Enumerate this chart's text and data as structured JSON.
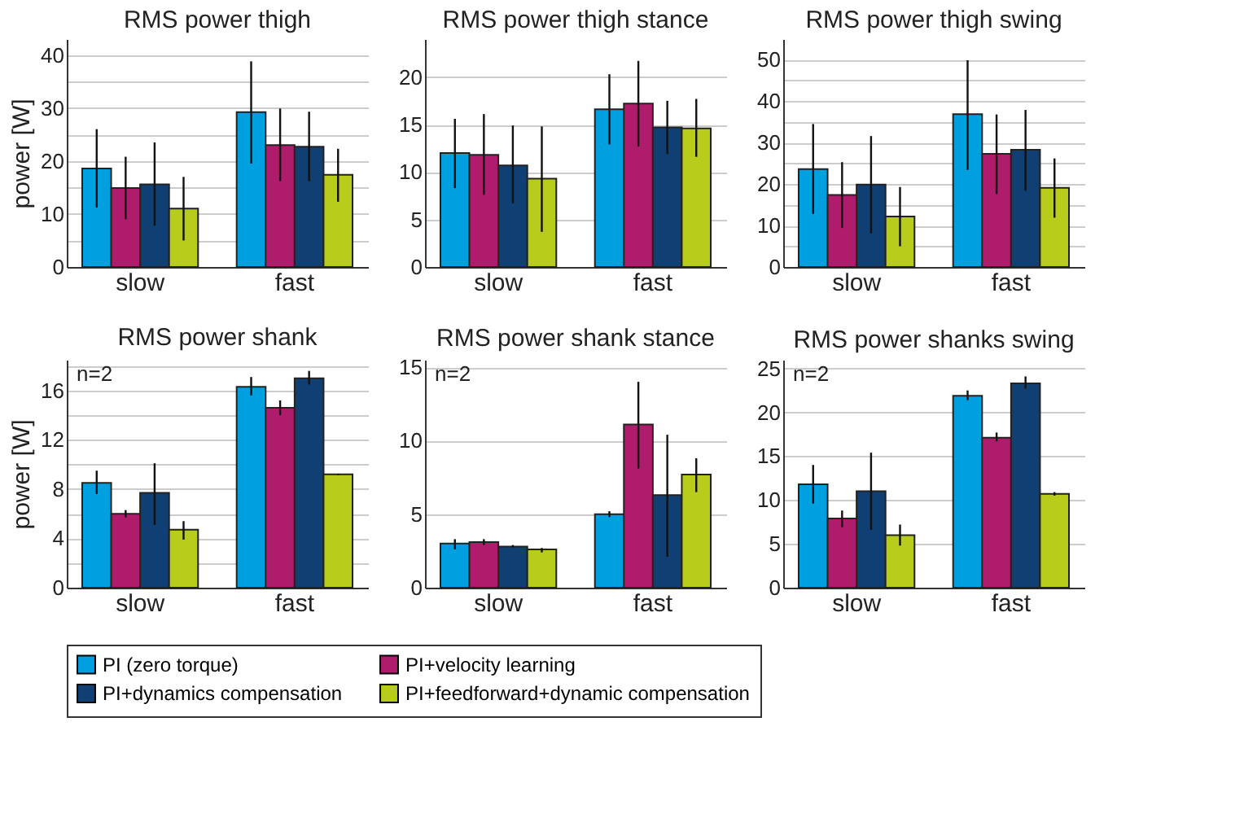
{
  "chart_data": [
    {
      "type": "bar",
      "title": "RMS power thigh",
      "ylabel": "power [W]",
      "categories": [
        "slow",
        "fast"
      ],
      "ylim": [
        0,
        43
      ],
      "yticks": [
        0,
        {
          "value": 5,
          "label": null
        },
        10,
        {
          "value": 15,
          "label": null
        },
        20,
        {
          "value": 25,
          "label": null
        },
        30,
        {
          "value": 35,
          "label": null
        },
        40
      ],
      "grid": "y",
      "legend": "bottom",
      "series": [
        {
          "name": "PI (zero torque)",
          "color": "#00a0e0",
          "values": [
            18.6,
            29.2
          ],
          "errors": [
            [
              11.2,
              26
            ],
            [
              19.5,
              38.8
            ]
          ]
        },
        {
          "name": "PI+velocity learning",
          "color": "#b01c6c",
          "values": [
            14.9,
            23
          ],
          "errors": [
            [
              9,
              20.8
            ],
            [
              16.2,
              29.9
            ]
          ]
        },
        {
          "name": "PI+dynamics compensation",
          "color": "#0f3f73",
          "values": [
            15.6,
            22.7
          ],
          "errors": [
            [
              7.8,
              23.5
            ],
            [
              16.2,
              29.3
            ]
          ]
        },
        {
          "name": "PI+feedforward+dynamic compensation",
          "color": "#b8cc1c",
          "values": [
            11,
            17.4
          ],
          "errors": [
            [
              5,
              17
            ],
            [
              12.3,
              22.3
            ]
          ]
        }
      ]
    },
    {
      "type": "bar",
      "title": "RMS power thigh stance",
      "categories": [
        "slow",
        "fast"
      ],
      "ylim": [
        0,
        24
      ],
      "yticks": [
        0,
        5,
        10,
        15,
        20
      ],
      "grid": "y",
      "legend": "bottom",
      "series": [
        {
          "name": "PI (zero torque)",
          "color": "#00a0e0",
          "values": [
            12,
            16.6
          ],
          "errors": [
            [
              8.3,
              15.6
            ],
            [
              12.9,
              20.3
            ]
          ]
        },
        {
          "name": "PI+velocity learning",
          "color": "#b01c6c",
          "values": [
            11.8,
            17.2
          ],
          "errors": [
            [
              7.6,
              16.1
            ],
            [
              12.7,
              21.7
            ]
          ]
        },
        {
          "name": "PI+dynamics compensation",
          "color": "#0f3f73",
          "values": [
            10.7,
            14.7
          ],
          "errors": [
            [
              6.7,
              14.9
            ],
            [
              11.9,
              17.5
            ]
          ]
        },
        {
          "name": "PI+feedforward+dynamic compensation",
          "color": "#b8cc1c",
          "values": [
            9.3,
            14.6
          ],
          "errors": [
            [
              3.7,
              14.8
            ],
            [
              11.6,
              17.7
            ]
          ]
        }
      ]
    },
    {
      "type": "bar",
      "title": "RMS power thigh swing",
      "categories": [
        "slow",
        "fast"
      ],
      "ylim": [
        0,
        55
      ],
      "yticks": [
        0,
        {
          "value": 5,
          "label": null
        },
        10,
        {
          "value": 15,
          "label": null
        },
        20,
        {
          "value": 25,
          "label": null
        },
        30,
        {
          "value": 35,
          "label": null
        },
        40,
        {
          "value": 45,
          "label": null
        },
        50
      ],
      "grid": "y",
      "legend": "bottom",
      "series": [
        {
          "name": "PI (zero torque)",
          "color": "#00a0e0",
          "values": [
            23.6,
            36.9
          ],
          "errors": [
            [
              12.8,
              34.5
            ],
            [
              23.4,
              49.9
            ]
          ]
        },
        {
          "name": "PI+velocity learning",
          "color": "#b01c6c",
          "values": [
            17.4,
            27.3
          ],
          "errors": [
            [
              9.4,
              25.3
            ],
            [
              17.6,
              36.8
            ]
          ]
        },
        {
          "name": "PI+dynamics compensation",
          "color": "#0f3f73",
          "values": [
            19.9,
            28.3
          ],
          "errors": [
            [
              8.1,
              31.6
            ],
            [
              18.4,
              37.9
            ]
          ]
        },
        {
          "name": "PI+feedforward+dynamic compensation",
          "color": "#b8cc1c",
          "values": [
            12.2,
            19.1
          ],
          "errors": [
            [
              5,
              19.3
            ],
            [
              11.9,
              26.2
            ]
          ]
        }
      ]
    },
    {
      "type": "bar",
      "title": "RMS power shank",
      "ylabel": "power [W]",
      "annotations": [
        "n=2"
      ],
      "categories": [
        "slow",
        "fast"
      ],
      "ylim": [
        0,
        18.5
      ],
      "yticks": [
        0,
        {
          "value": 2,
          "label": null
        },
        4,
        {
          "value": 6,
          "label": null
        },
        8,
        {
          "value": 10,
          "label": null
        },
        12,
        {
          "value": 14,
          "label": null
        },
        16,
        {
          "value": 18,
          "label": null
        }
      ],
      "grid": "y",
      "legend": "bottom",
      "series": [
        {
          "name": "PI (zero torque)",
          "color": "#00a0e0",
          "values": [
            8.5,
            16.3
          ],
          "errors": [
            [
              7.6,
              9.5
            ],
            [
              15.6,
              17.1
            ]
          ]
        },
        {
          "name": "PI+velocity learning",
          "color": "#b01c6c",
          "values": [
            6,
            14.6
          ],
          "errors": [
            [
              5.7,
              6.3
            ],
            [
              14,
              15.2
            ]
          ]
        },
        {
          "name": "PI+dynamics compensation",
          "color": "#0f3f73",
          "values": [
            7.7,
            17
          ],
          "errors": [
            [
              5.1,
              10.1
            ],
            [
              16.5,
              17.6
            ]
          ]
        },
        {
          "name": "PI+feedforward+dynamic compensation",
          "color": "#b8cc1c",
          "values": [
            4.7,
            9.2
          ],
          "errors": [
            [
              3.9,
              5.4
            ],
            [
              9.15,
              9.25
            ]
          ]
        }
      ]
    },
    {
      "type": "bar",
      "title": "RMS power shank stance",
      "annotations": [
        "n=2"
      ],
      "categories": [
        "slow",
        "fast"
      ],
      "ylim": [
        0,
        15.5
      ],
      "yticks": [
        0,
        5,
        10,
        15
      ],
      "grid": "y",
      "legend": "bottom",
      "series": [
        {
          "name": "PI (zero torque)",
          "color": "#00a0e0",
          "values": [
            3,
            5
          ],
          "errors": [
            [
              2.6,
              3.3
            ],
            [
              4.8,
              5.2
            ]
          ]
        },
        {
          "name": "PI+velocity learning",
          "color": "#b01c6c",
          "values": [
            3.1,
            11.1
          ],
          "errors": [
            [
              2.9,
              3.3
            ],
            [
              8.1,
              14
            ]
          ]
        },
        {
          "name": "PI+dynamics compensation",
          "color": "#0f3f73",
          "values": [
            2.8,
            6.3
          ],
          "errors": [
            [
              2.75,
              2.9
            ],
            [
              2.1,
              10.4
            ]
          ]
        },
        {
          "name": "PI+feedforward+dynamic compensation",
          "color": "#b8cc1c",
          "values": [
            2.6,
            7.7
          ],
          "errors": [
            [
              2.4,
              2.7
            ],
            [
              6.5,
              8.8
            ]
          ]
        }
      ]
    },
    {
      "type": "bar",
      "title": "RMS power shanks swing",
      "annotations": [
        "n=2"
      ],
      "categories": [
        "slow",
        "fast"
      ],
      "ylim": [
        0,
        26
      ],
      "yticks": [
        0,
        5,
        10,
        15,
        20,
        25
      ],
      "grid": "y",
      "legend": "bottom",
      "series": [
        {
          "name": "PI (zero torque)",
          "color": "#00a0e0",
          "values": [
            11.8,
            21.9
          ],
          "errors": [
            [
              9.6,
              14
            ],
            [
              21.4,
              22.5
            ]
          ]
        },
        {
          "name": "PI+velocity learning",
          "color": "#b01c6c",
          "values": [
            7.9,
            17.1
          ],
          "errors": [
            [
              6.9,
              8.8
            ],
            [
              16.7,
              17.7
            ]
          ]
        },
        {
          "name": "PI+dynamics compensation",
          "color": "#0f3f73",
          "values": [
            11,
            23.3
          ],
          "errors": [
            [
              6.6,
              15.4
            ],
            [
              22.7,
              24.1
            ]
          ]
        },
        {
          "name": "PI+feedforward+dynamic compensation",
          "color": "#b8cc1c",
          "values": [
            6,
            10.7
          ],
          "errors": [
            [
              4.8,
              7.2
            ],
            [
              10.5,
              10.9
            ]
          ]
        }
      ]
    }
  ]
}
